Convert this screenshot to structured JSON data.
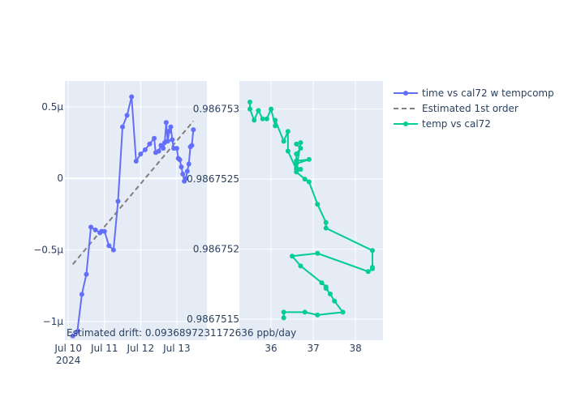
{
  "chart_data": [
    {
      "type": "line",
      "x_type": "date",
      "x_ticks": [
        "2024-07-10",
        "2024-07-11",
        "2024-07-12",
        "2024-07-13"
      ],
      "x_tick_labels": [
        "Jul 10",
        "Jul 11",
        "Jul 12",
        "Jul 13"
      ],
      "x_year_label": "2024",
      "xlim": [
        "2024-07-09T21:45",
        "2024-07-13T20:00"
      ],
      "ylim": [
        -1.13e-06,
        6.8e-07
      ],
      "y_ticks": [
        5e-07,
        0,
        -5e-07,
        -1e-06
      ],
      "y_tick_labels": [
        "0.5µ",
        "0",
        "−0.5µ",
        "−1µ"
      ],
      "grid": true,
      "series": [
        {
          "name": "time vs cal72 w tempcomp",
          "color": "#636efa",
          "mode": "lines+markers",
          "x": [
            "2024-07-10T03:00",
            "2024-07-10T06:00",
            "2024-07-10T09:00",
            "2024-07-10T12:00",
            "2024-07-10T15:00",
            "2024-07-10T18:00",
            "2024-07-10T21:00",
            "2024-07-10T22:00",
            "2024-07-11T00:00",
            "2024-07-11T03:00",
            "2024-07-11T06:00",
            "2024-07-11T09:00",
            "2024-07-11T12:00",
            "2024-07-11T15:00",
            "2024-07-11T18:00",
            "2024-07-11T21:00",
            "2024-07-12T00:00",
            "2024-07-12T03:00",
            "2024-07-12T06:00",
            "2024-07-12T09:00",
            "2024-07-12T10:00",
            "2024-07-12T12:00",
            "2024-07-12T13:30",
            "2024-07-12T15:00",
            "2024-07-12T16:00",
            "2024-07-12T17:00",
            "2024-07-12T18:00",
            "2024-07-12T19:00",
            "2024-07-12T20:00",
            "2024-07-12T21:00",
            "2024-07-12T22:00",
            "2024-07-13T00:00",
            "2024-07-13T01:00",
            "2024-07-13T02:00",
            "2024-07-13T03:00",
            "2024-07-13T04:00",
            "2024-07-13T05:00",
            "2024-07-13T06:00",
            "2024-07-13T07:00",
            "2024-07-13T08:00",
            "2024-07-13T09:00",
            "2024-07-13T10:00",
            "2024-07-13T11:00"
          ],
          "y": [
            -1.1e-06,
            -1.07e-06,
            -8.1e-07,
            -6.7e-07,
            -3.4e-07,
            -3.6e-07,
            -3.8e-07,
            -3.7e-07,
            -3.7e-07,
            -4.7e-07,
            -5e-07,
            -1.6e-07,
            3.6e-07,
            4.4e-07,
            5.7e-07,
            1.2e-07,
            1.7e-07,
            2e-07,
            2.4e-07,
            2.8e-07,
            1.8e-07,
            1.9e-07,
            2.3e-07,
            2.1e-07,
            2.5e-07,
            3.9e-07,
            2.6e-07,
            3.3e-07,
            3.6e-07,
            2.7e-07,
            2.1e-07,
            2.1e-07,
            1.4e-07,
            1.3e-07,
            8e-08,
            3e-08,
            -2e-08,
            0.0,
            5e-08,
            1e-07,
            2.2e-07,
            2.3e-07,
            3.4e-07
          ]
        },
        {
          "name": "Estimated 1st order",
          "color": "#808080",
          "mode": "dashed",
          "x": [
            "2024-07-10T03:00",
            "2024-07-13T11:00"
          ],
          "y": [
            -6e-07,
            4e-07
          ]
        }
      ],
      "annotation": "Estimated drift:  0.0936897231172636 ppb/day"
    },
    {
      "type": "line",
      "xlim": [
        35.25,
        38.65
      ],
      "ylim": [
        0.98675135,
        0.9867532
      ],
      "x_ticks": [
        36,
        37,
        38
      ],
      "x_tick_labels": [
        "36",
        "37",
        "38"
      ],
      "y_ticks": [
        0.986753,
        0.9867525,
        0.986752,
        0.9867515
      ],
      "y_tick_labels": [
        "0.986753",
        "0.9867525",
        "0.986752",
        "0.9867515"
      ],
      "grid": true,
      "series": [
        {
          "name": "temp vs cal72",
          "color": "#00cc96",
          "mode": "lines+markers",
          "x": [
            35.5,
            35.5,
            35.6,
            35.7,
            35.8,
            35.9,
            36.0,
            36.1,
            36.1,
            36.3,
            36.4,
            36.4,
            36.6,
            36.7,
            36.6,
            36.7,
            36.6,
            36.6,
            36.9,
            36.6,
            36.6,
            36.7,
            36.6,
            36.8,
            36.9,
            37.1,
            37.3,
            37.3,
            38.4,
            38.4,
            38.4,
            38.3,
            37.1,
            36.5,
            36.7,
            37.2,
            37.3,
            37.3,
            37.4,
            37.5,
            37.7,
            37.1,
            36.8,
            36.3,
            36.3
          ],
          "y": [
            0.98675305,
            0.986753,
            0.98675292,
            0.98675299,
            0.98675293,
            0.98675293,
            0.986753,
            0.98675288,
            0.98675292,
            0.98675277,
            0.98675284,
            0.9867527,
            0.98675257,
            0.98675276,
            0.98675275,
            0.98675272,
            0.98675268,
            0.98675263,
            0.98675264,
            0.98675261,
            0.98675258,
            0.98675257,
            0.98675255,
            0.9867525,
            0.98675248,
            0.98675232,
            0.98675219,
            0.98675215,
            0.98675199,
            0.98675187,
            0.98675186,
            0.98675184,
            0.98675197,
            0.98675195,
            0.98675188,
            0.98675176,
            0.98675173,
            0.98675172,
            0.98675168,
            0.98675163,
            0.98675155,
            0.98675153,
            0.98675155,
            0.98675155,
            0.98675151
          ]
        }
      ]
    }
  ]
}
